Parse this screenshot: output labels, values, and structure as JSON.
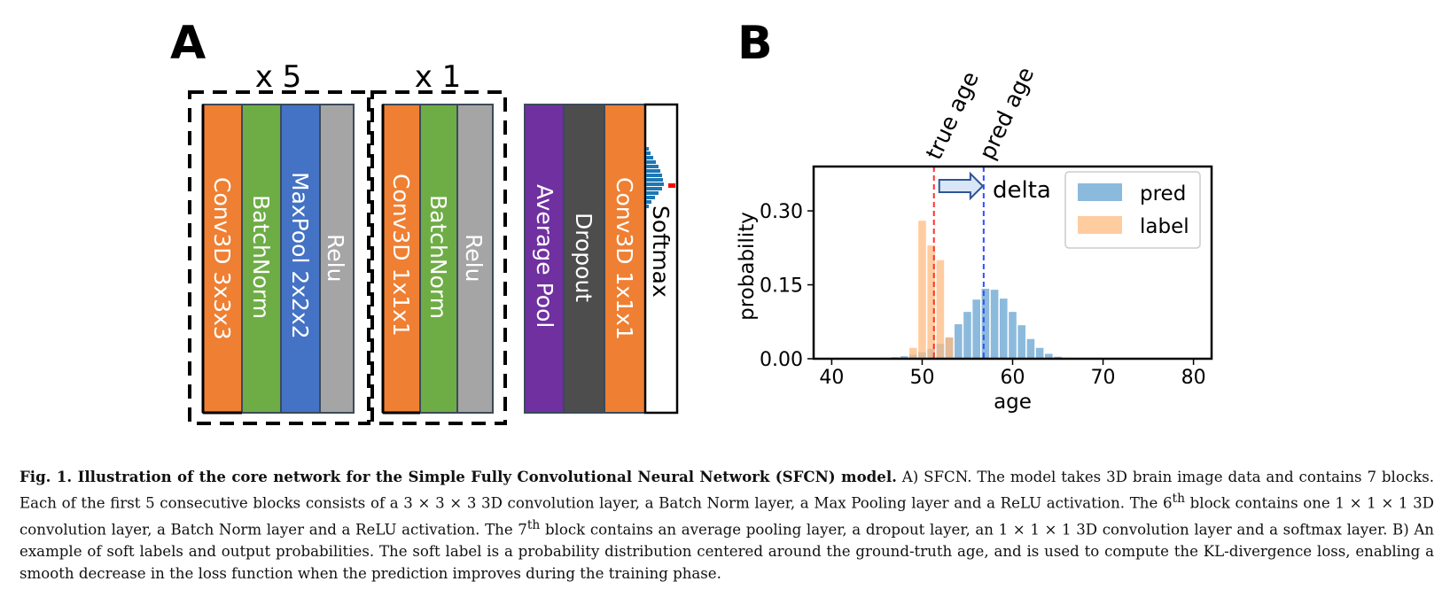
{
  "panelA": {
    "letter": "A",
    "groups": [
      {
        "label": "x 5",
        "layers": [
          {
            "label": "Conv3D 3x3x3",
            "color": "#ef7f32"
          },
          {
            "label": "BatchNorm",
            "color": "#6ead45"
          },
          {
            "label": "MaxPool 2x2x2",
            "color": "#4472c4"
          },
          {
            "label": "Relu",
            "color": "#a5a5a5"
          }
        ]
      },
      {
        "label": "x 1",
        "layers": [
          {
            "label": "Conv3D 1x1x1",
            "color": "#ef7f32"
          },
          {
            "label": "BatchNorm",
            "color": "#6ead45"
          },
          {
            "label": "Relu",
            "color": "#a5a5a5"
          }
        ]
      }
    ],
    "final_layers": [
      {
        "label": "Average Pool",
        "color": "#7030a0"
      },
      {
        "label": "Dropout",
        "color": "#4d4d4d"
      },
      {
        "label": "Conv3D 1x1x1",
        "color": "#ef7f32"
      },
      {
        "label": "Softmax",
        "color": "#ffffff"
      }
    ]
  },
  "panelB": {
    "letter": "B",
    "annotations": {
      "true_age": "true age",
      "pred_age": "pred age",
      "delta": "delta"
    },
    "colors": {
      "pred": "#7fb3d9",
      "label": "#ffbb80",
      "true_line": "#ff3030",
      "pred_line": "#3050ff"
    }
  },
  "chart_data": {
    "type": "bar",
    "xlabel": "age",
    "ylabel": "probability",
    "xlim": [
      38,
      82
    ],
    "ylim": [
      0,
      0.39
    ],
    "xticks": [
      40,
      50,
      60,
      70,
      80
    ],
    "yticks": [
      0.0,
      0.15,
      0.3
    ],
    "ytick_labels": [
      "0.00",
      "0.15",
      "0.30"
    ],
    "legend_position": "top-right",
    "true_age": 51.3,
    "pred_age": 56.8,
    "series": [
      {
        "name": "pred",
        "x": [
          45,
          46,
          47,
          48,
          49,
          50,
          51,
          52,
          53,
          54,
          55,
          56,
          57,
          58,
          59,
          60,
          61,
          62,
          63,
          64,
          65,
          66
        ],
        "values": [
          0.001,
          0.002,
          0.003,
          0.005,
          0.008,
          0.013,
          0.02,
          0.03,
          0.043,
          0.07,
          0.095,
          0.12,
          0.142,
          0.14,
          0.122,
          0.095,
          0.068,
          0.04,
          0.022,
          0.01,
          0.004,
          0.002
        ]
      },
      {
        "name": "label",
        "x": [
          49,
          50,
          51,
          52,
          53
        ],
        "values": [
          0.022,
          0.28,
          0.23,
          0.2,
          0.043
        ]
      }
    ]
  },
  "caption": {
    "bold": "Fig. 1.  Illustration of the core network for the Simple Fully Convolutional Neural Network (SFCN) model.",
    "p1": " A) SFCN. The model takes 3D brain image data and contains 7 blocks. Each of the first 5 consecutive blocks consists of a 3 × 3 × 3 3D convolution layer, a Batch Norm layer, a Max Pooling layer and a ReLU activation. The 6",
    "sup1": "th",
    "p2": " block contains one 1 × 1 × 1 3D convolution layer, a Batch Norm layer and a ReLU activation. The 7",
    "sup2": "th",
    "p3": " block contains an average pooling layer, a dropout layer, an 1 × 1 × 1 3D convolution layer and a softmax layer. B) An example of soft labels and output probabilities. The soft label is a probability distribution centered around the ground-truth age, and is used to compute the KL-divergence loss, enabling a smooth decrease in the loss function when the prediction improves during the training phase."
  }
}
